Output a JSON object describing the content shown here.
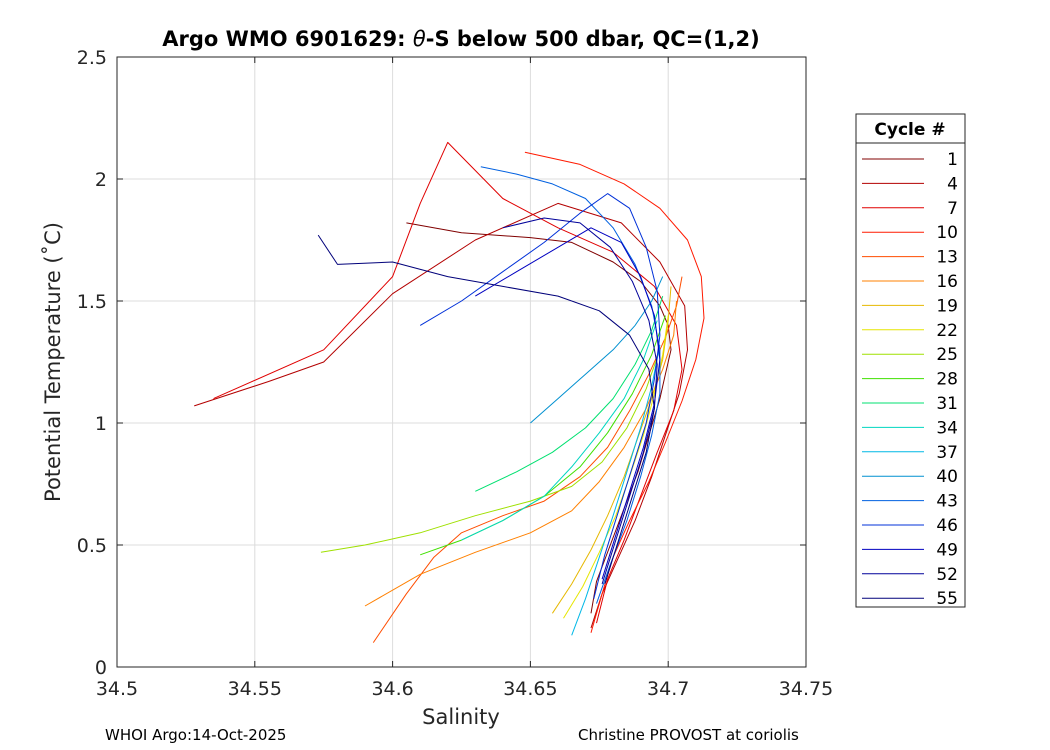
{
  "chart_data": {
    "type": "line",
    "title_prefix": "Argo WMO 6901629: ",
    "title_symbol": "θ",
    "title_suffix": "-S below 500 dbar,  QC=(1,2)",
    "xlabel": "Salinity",
    "ylabel": "Potential Temperature (˚C)",
    "xlim": [
      34.5,
      34.75
    ],
    "ylim": [
      0,
      2.5
    ],
    "xticks": [
      "34.5",
      "34.55",
      "34.6",
      "34.65",
      "34.7",
      "34.75"
    ],
    "yticks": [
      "0",
      "0.5",
      "1",
      "1.5",
      "2",
      "2.5"
    ],
    "grid": true,
    "legend_title": "Cycle #",
    "legend_position": "right",
    "series": [
      {
        "name": "1",
        "color": "#800000",
        "points": [
          [
            34.605,
            1.82
          ],
          [
            34.625,
            1.78
          ],
          [
            34.65,
            1.76
          ],
          [
            34.665,
            1.74
          ],
          [
            34.68,
            1.66
          ],
          [
            34.69,
            1.58
          ],
          [
            34.697,
            1.48
          ],
          [
            34.7,
            1.4
          ],
          [
            34.701,
            1.3
          ],
          [
            34.699,
            1.2
          ],
          [
            34.697,
            1.1
          ],
          [
            34.693,
            0.95
          ],
          [
            34.689,
            0.8
          ],
          [
            34.684,
            0.65
          ],
          [
            34.679,
            0.5
          ],
          [
            34.674,
            0.35
          ],
          [
            34.672,
            0.22
          ]
        ]
      },
      {
        "name": "4",
        "color": "#b30000",
        "points": [
          [
            34.528,
            1.07
          ],
          [
            34.555,
            1.17
          ],
          [
            34.575,
            1.25
          ],
          [
            34.6,
            1.53
          ],
          [
            34.63,
            1.75
          ],
          [
            34.66,
            1.9
          ],
          [
            34.683,
            1.82
          ],
          [
            34.697,
            1.66
          ],
          [
            34.706,
            1.48
          ],
          [
            34.707,
            1.3
          ],
          [
            34.704,
            1.12
          ],
          [
            34.699,
            0.95
          ],
          [
            34.694,
            0.78
          ],
          [
            34.688,
            0.6
          ],
          [
            34.682,
            0.45
          ],
          [
            34.676,
            0.3
          ],
          [
            34.672,
            0.16
          ]
        ]
      },
      {
        "name": "7",
        "color": "#e00000",
        "points": [
          [
            34.535,
            1.1
          ],
          [
            34.575,
            1.3
          ],
          [
            34.6,
            1.6
          ],
          [
            34.61,
            1.9
          ],
          [
            34.62,
            2.15
          ],
          [
            34.64,
            1.92
          ],
          [
            34.66,
            1.8
          ],
          [
            34.68,
            1.7
          ],
          [
            34.695,
            1.56
          ],
          [
            34.703,
            1.4
          ],
          [
            34.705,
            1.22
          ],
          [
            34.702,
            1.05
          ],
          [
            34.696,
            0.88
          ],
          [
            34.69,
            0.7
          ],
          [
            34.684,
            0.52
          ],
          [
            34.678,
            0.36
          ],
          [
            34.674,
            0.18
          ]
        ]
      },
      {
        "name": "10",
        "color": "#ff1a00",
        "points": [
          [
            34.648,
            2.11
          ],
          [
            34.668,
            2.06
          ],
          [
            34.684,
            1.98
          ],
          [
            34.697,
            1.88
          ],
          [
            34.707,
            1.75
          ],
          [
            34.712,
            1.6
          ],
          [
            34.713,
            1.43
          ],
          [
            34.71,
            1.26
          ],
          [
            34.705,
            1.09
          ],
          [
            34.699,
            0.92
          ],
          [
            34.693,
            0.76
          ],
          [
            34.686,
            0.6
          ],
          [
            34.68,
            0.45
          ],
          [
            34.676,
            0.3
          ],
          [
            34.672,
            0.14
          ]
        ]
      },
      {
        "name": "13",
        "color": "#ff4d00",
        "points": [
          [
            34.593,
            0.1
          ],
          [
            34.605,
            0.3
          ],
          [
            34.615,
            0.45
          ],
          [
            34.625,
            0.55
          ],
          [
            34.64,
            0.62
          ],
          [
            34.655,
            0.68
          ],
          [
            34.668,
            0.78
          ],
          [
            34.678,
            0.9
          ],
          [
            34.686,
            1.05
          ],
          [
            34.693,
            1.2
          ],
          [
            34.699,
            1.35
          ],
          [
            34.703,
            1.48
          ],
          [
            34.705,
            1.6
          ]
        ]
      },
      {
        "name": "16",
        "color": "#ff8000",
        "points": [
          [
            34.59,
            0.25
          ],
          [
            34.61,
            0.38
          ],
          [
            34.63,
            0.47
          ],
          [
            34.65,
            0.55
          ],
          [
            34.665,
            0.64
          ],
          [
            34.675,
            0.76
          ],
          [
            34.684,
            0.9
          ],
          [
            34.692,
            1.06
          ],
          [
            34.698,
            1.22
          ],
          [
            34.702,
            1.36
          ],
          [
            34.703,
            1.5
          ]
        ]
      },
      {
        "name": "19",
        "color": "#e6b800",
        "points": [
          [
            34.658,
            0.22
          ],
          [
            34.665,
            0.34
          ],
          [
            34.672,
            0.48
          ],
          [
            34.678,
            0.62
          ],
          [
            34.684,
            0.78
          ],
          [
            34.689,
            0.94
          ],
          [
            34.694,
            1.1
          ],
          [
            34.698,
            1.26
          ],
          [
            34.7,
            1.42
          ],
          [
            34.701,
            1.56
          ]
        ]
      },
      {
        "name": "22",
        "color": "#e6e600",
        "points": [
          [
            34.662,
            0.2
          ],
          [
            34.669,
            0.33
          ],
          [
            34.675,
            0.47
          ],
          [
            34.681,
            0.62
          ],
          [
            34.686,
            0.78
          ],
          [
            34.691,
            0.95
          ],
          [
            34.695,
            1.12
          ],
          [
            34.698,
            1.28
          ],
          [
            34.7,
            1.44
          ]
        ]
      },
      {
        "name": "25",
        "color": "#9fe000",
        "points": [
          [
            34.574,
            0.47
          ],
          [
            34.59,
            0.5
          ],
          [
            34.61,
            0.55
          ],
          [
            34.63,
            0.62
          ],
          [
            34.65,
            0.68
          ],
          [
            34.665,
            0.74
          ],
          [
            34.676,
            0.84
          ],
          [
            34.685,
            0.98
          ],
          [
            34.692,
            1.14
          ],
          [
            34.697,
            1.3
          ]
        ]
      },
      {
        "name": "28",
        "color": "#40e000",
        "points": [
          [
            34.61,
            0.46
          ],
          [
            34.625,
            0.52
          ],
          [
            34.64,
            0.6
          ],
          [
            34.655,
            0.7
          ],
          [
            34.668,
            0.82
          ],
          [
            34.678,
            0.96
          ],
          [
            34.687,
            1.12
          ],
          [
            34.694,
            1.28
          ],
          [
            34.699,
            1.44
          ]
        ]
      },
      {
        "name": "31",
        "color": "#00e070",
        "points": [
          [
            34.63,
            0.72
          ],
          [
            34.645,
            0.8
          ],
          [
            34.658,
            0.88
          ],
          [
            34.67,
            0.98
          ],
          [
            34.68,
            1.1
          ],
          [
            34.688,
            1.24
          ],
          [
            34.694,
            1.38
          ],
          [
            34.698,
            1.52
          ]
        ]
      },
      {
        "name": "34",
        "color": "#00d6c0",
        "points": [
          [
            34.625,
            0.52
          ],
          [
            34.64,
            0.6
          ],
          [
            34.655,
            0.7
          ],
          [
            34.665,
            0.82
          ],
          [
            34.675,
            0.96
          ],
          [
            34.684,
            1.1
          ],
          [
            34.691,
            1.26
          ],
          [
            34.696,
            1.42
          ]
        ]
      },
      {
        "name": "37",
        "color": "#00b8e6",
        "points": [
          [
            34.665,
            0.13
          ],
          [
            34.67,
            0.28
          ],
          [
            34.675,
            0.45
          ],
          [
            34.68,
            0.62
          ],
          [
            34.685,
            0.8
          ],
          [
            34.69,
            0.98
          ],
          [
            34.694,
            1.15
          ],
          [
            34.697,
            1.32
          ]
        ]
      },
      {
        "name": "40",
        "color": "#0090d0",
        "points": [
          [
            34.65,
            1.0
          ],
          [
            34.66,
            1.1
          ],
          [
            34.67,
            1.2
          ],
          [
            34.68,
            1.3
          ],
          [
            34.688,
            1.4
          ],
          [
            34.694,
            1.5
          ],
          [
            34.698,
            1.6
          ]
        ]
      },
      {
        "name": "43",
        "color": "#0060e0",
        "points": [
          [
            34.632,
            2.05
          ],
          [
            34.645,
            2.02
          ],
          [
            34.658,
            1.98
          ],
          [
            34.67,
            1.92
          ],
          [
            34.68,
            1.8
          ],
          [
            34.688,
            1.65
          ],
          [
            34.694,
            1.48
          ],
          [
            34.697,
            1.3
          ],
          [
            34.697,
            1.12
          ],
          [
            34.694,
            0.95
          ],
          [
            34.69,
            0.78
          ],
          [
            34.685,
            0.6
          ],
          [
            34.679,
            0.42
          ],
          [
            34.674,
            0.26
          ]
        ]
      },
      {
        "name": "46",
        "color": "#0030d8",
        "points": [
          [
            34.61,
            1.4
          ],
          [
            34.625,
            1.5
          ],
          [
            34.64,
            1.62
          ],
          [
            34.655,
            1.74
          ],
          [
            34.668,
            1.86
          ],
          [
            34.678,
            1.94
          ],
          [
            34.686,
            1.88
          ],
          [
            34.692,
            1.72
          ],
          [
            34.696,
            1.54
          ],
          [
            34.697,
            1.36
          ],
          [
            34.695,
            1.18
          ],
          [
            34.692,
            1.0
          ],
          [
            34.687,
            0.82
          ],
          [
            34.682,
            0.64
          ],
          [
            34.677,
            0.46
          ],
          [
            34.673,
            0.28
          ]
        ]
      },
      {
        "name": "49",
        "color": "#0000c0",
        "points": [
          [
            34.63,
            1.52
          ],
          [
            34.645,
            1.62
          ],
          [
            34.66,
            1.72
          ],
          [
            34.672,
            1.8
          ],
          [
            34.683,
            1.74
          ],
          [
            34.69,
            1.6
          ],
          [
            34.695,
            1.44
          ],
          [
            34.697,
            1.26
          ],
          [
            34.695,
            1.08
          ],
          [
            34.691,
            0.9
          ],
          [
            34.686,
            0.72
          ],
          [
            34.681,
            0.54
          ],
          [
            34.676,
            0.36
          ]
        ]
      },
      {
        "name": "52",
        "color": "#00009a",
        "points": [
          [
            34.64,
            1.8
          ],
          [
            34.655,
            1.84
          ],
          [
            34.668,
            1.82
          ],
          [
            34.679,
            1.72
          ],
          [
            34.687,
            1.58
          ],
          [
            34.693,
            1.42
          ],
          [
            34.696,
            1.24
          ],
          [
            34.695,
            1.06
          ],
          [
            34.691,
            0.88
          ],
          [
            34.686,
            0.7
          ],
          [
            34.681,
            0.52
          ],
          [
            34.676,
            0.34
          ]
        ]
      },
      {
        "name": "55",
        "color": "#00007a",
        "points": [
          [
            34.573,
            1.77
          ],
          [
            34.58,
            1.65
          ],
          [
            34.6,
            1.66
          ],
          [
            34.62,
            1.6
          ],
          [
            34.64,
            1.56
          ],
          [
            34.66,
            1.52
          ],
          [
            34.675,
            1.46
          ],
          [
            34.686,
            1.36
          ],
          [
            34.693,
            1.22
          ],
          [
            34.695,
            1.06
          ],
          [
            34.692,
            0.88
          ],
          [
            34.687,
            0.7
          ],
          [
            34.682,
            0.52
          ],
          [
            34.677,
            0.34
          ]
        ]
      }
    ]
  },
  "footer": {
    "left": "WHOI Argo:14-Oct-2025",
    "right": "Christine PROVOST at coriolis"
  }
}
